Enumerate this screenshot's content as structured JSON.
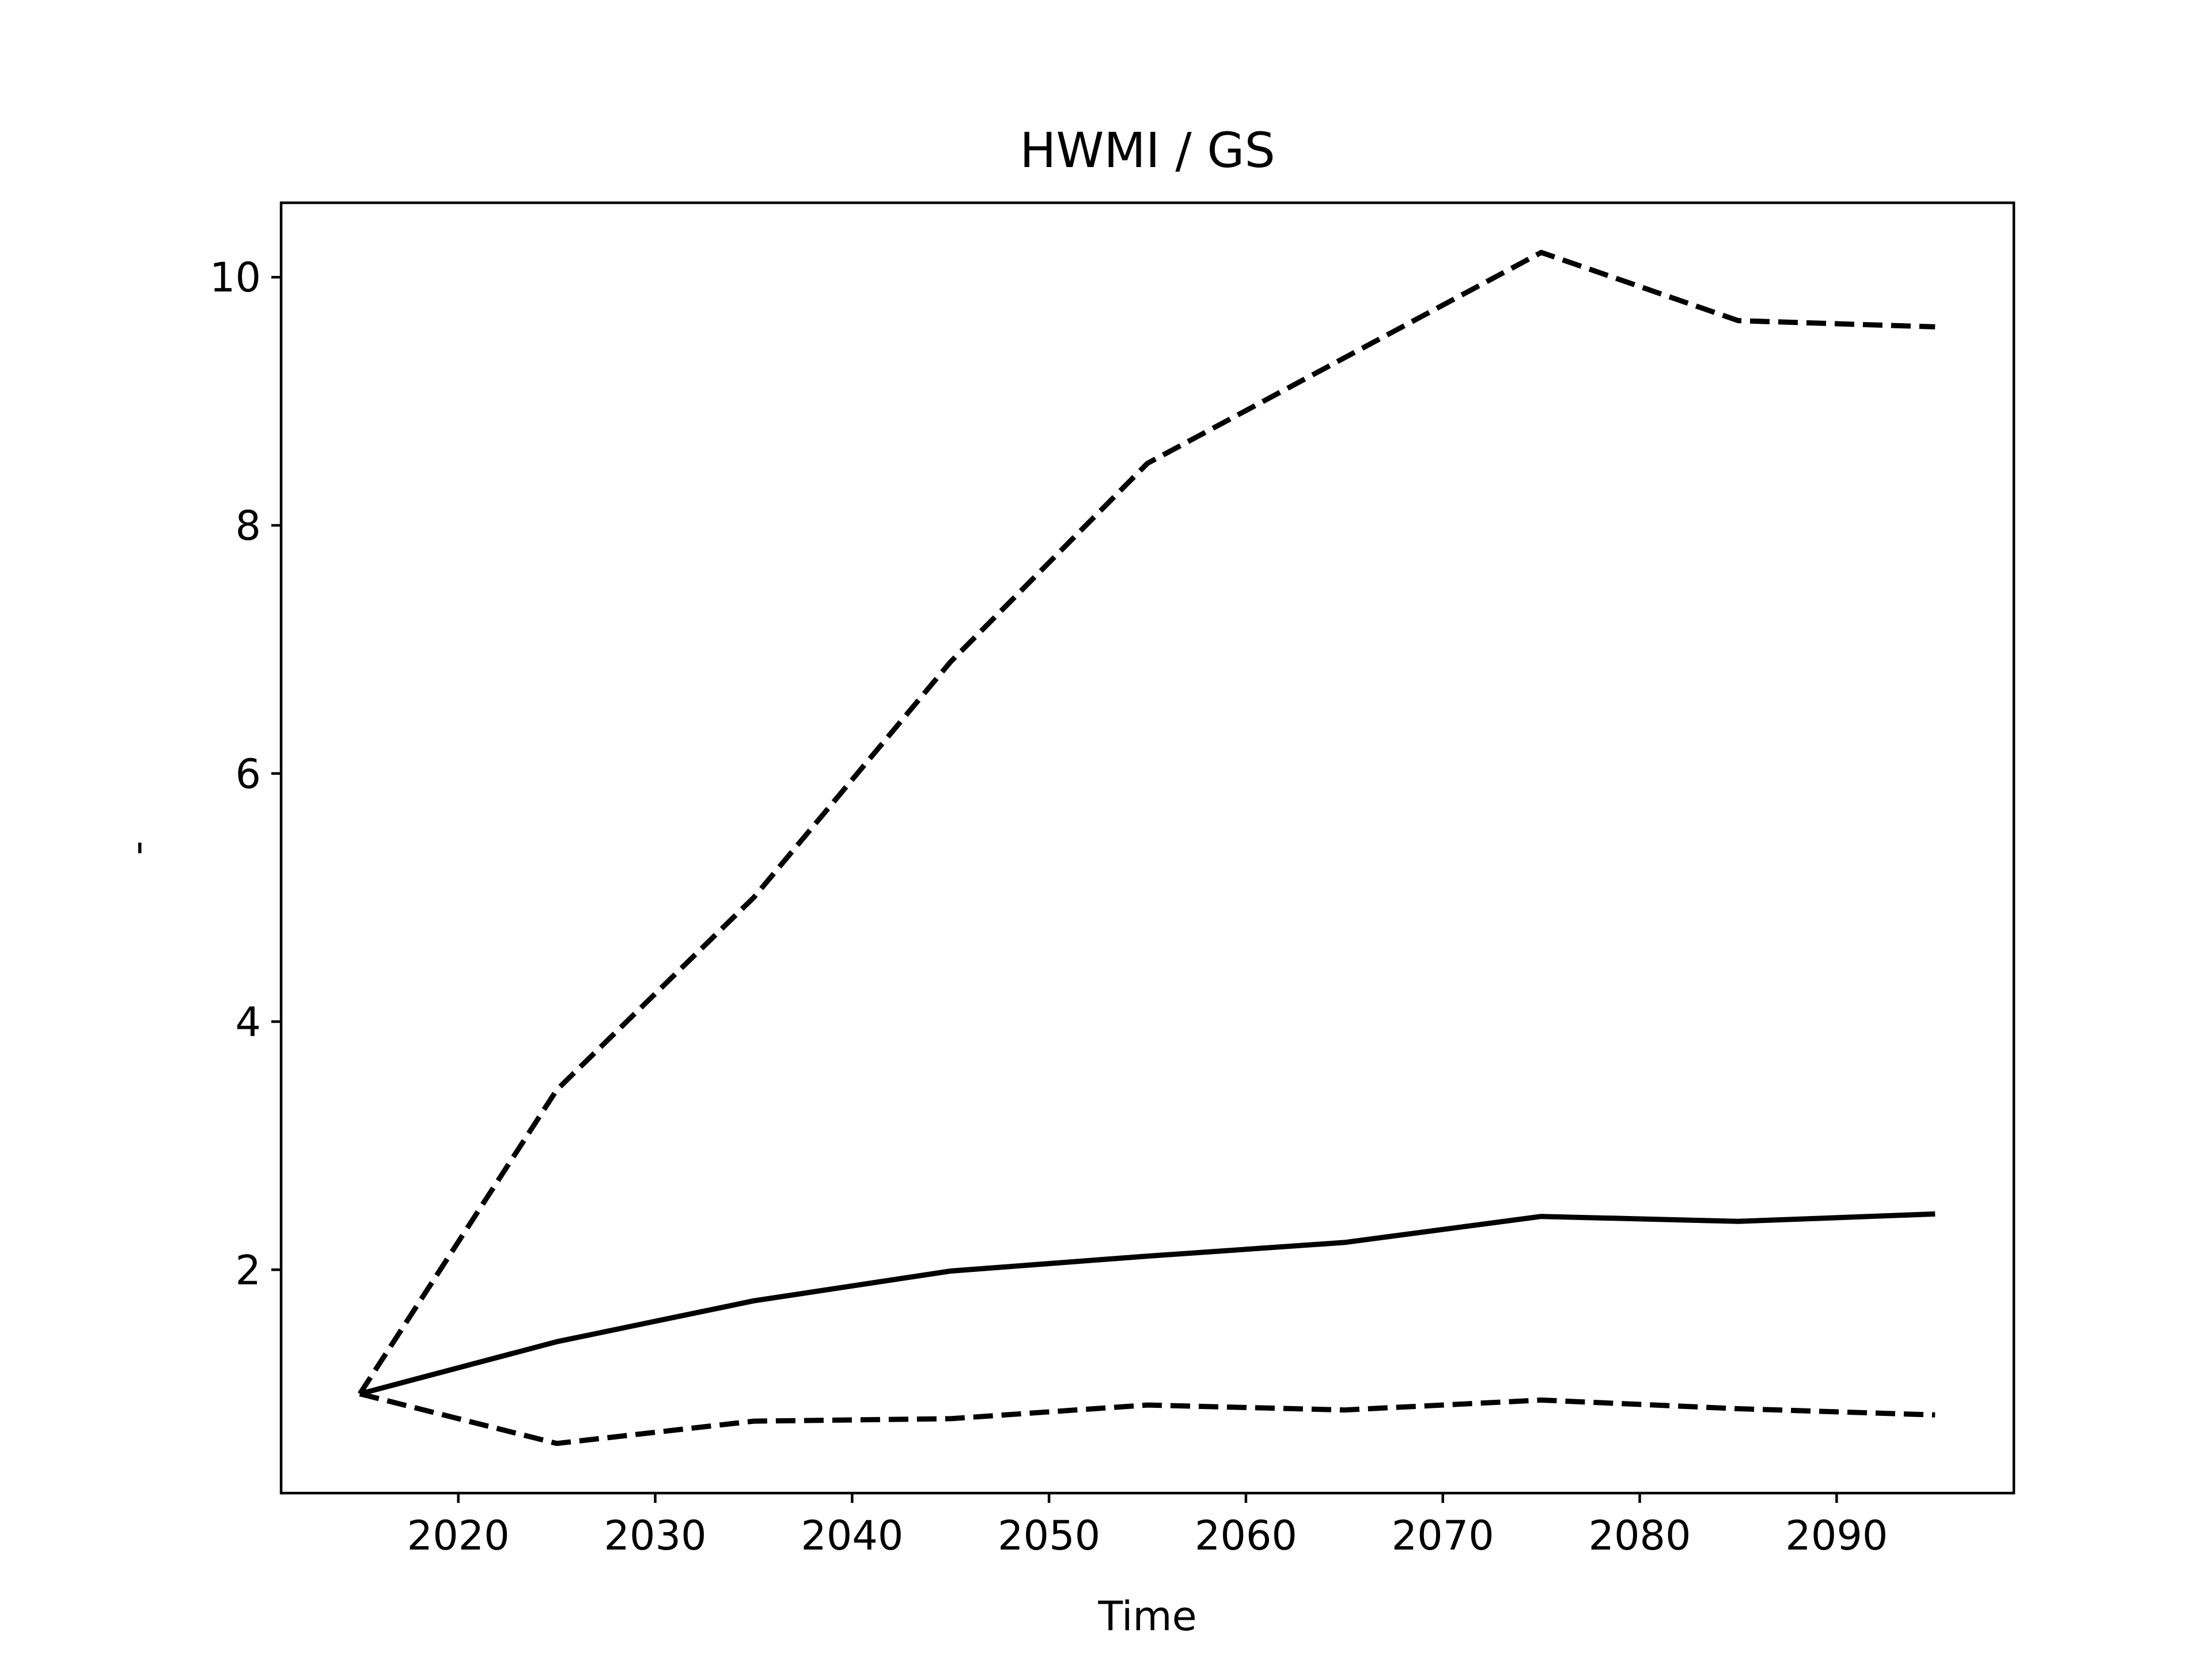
{
  "chart_data": {
    "type": "line",
    "title": "HWMI / GS",
    "xlabel": "Time",
    "ylabel": "-",
    "xlim": [
      2011,
      2099
    ],
    "ylim": [
      0.2,
      10.6
    ],
    "xticks": [
      2020,
      2030,
      2040,
      2050,
      2060,
      2070,
      2080,
      2090
    ],
    "yticks": [
      2,
      4,
      6,
      8,
      10
    ],
    "grid": false,
    "legend": "none",
    "x": [
      2015,
      2025,
      2035,
      2045,
      2055,
      2065,
      2075,
      2085,
      2095
    ],
    "series": [
      {
        "style": "dashed",
        "color": "#000000",
        "values": [
          1.0,
          3.45,
          5.0,
          6.9,
          8.5,
          9.35,
          10.2,
          9.65,
          9.6
        ]
      },
      {
        "style": "solid",
        "color": "#000000",
        "values": [
          1.0,
          1.42,
          1.75,
          1.99,
          2.11,
          2.22,
          2.43,
          2.39,
          2.45
        ]
      },
      {
        "style": "dashed",
        "color": "#000000",
        "values": [
          1.0,
          0.6,
          0.78,
          0.8,
          0.91,
          0.87,
          0.95,
          0.88,
          0.83
        ]
      }
    ]
  }
}
